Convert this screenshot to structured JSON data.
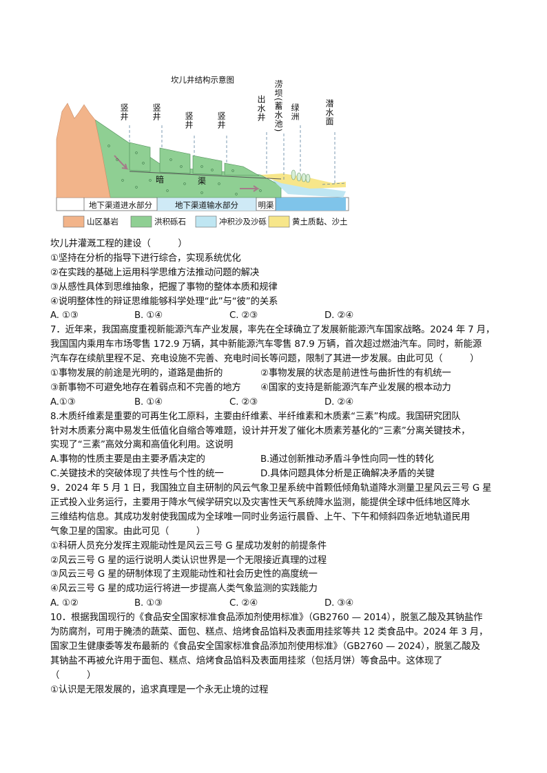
{
  "figure": {
    "title": "坎儿井结构示意图",
    "labels": {
      "shaft1": "竖井",
      "shaft2": "竖井",
      "shaft3": "竖井",
      "shaft4": "竖井",
      "outlet_well": "出水井",
      "reservoir": "涝坝(蓄水池)",
      "oasis": "绿洲",
      "water_table": "潜水面",
      "dark_channel_1": "暗",
      "dark_channel_2": "渠"
    },
    "sections": {
      "intake": "地下渠道进水部分",
      "transport": "地下渠道输水部分",
      "open_channel": "明渠"
    },
    "legend": [
      {
        "label": "山区基岩",
        "color": "#f2b48a"
      },
      {
        "label": "洪积砾石",
        "color": "#8fcf93"
      },
      {
        "label": "冲积沙及沙砾",
        "color": "#bfe6f2"
      },
      {
        "label": "黄土质黏、沙土",
        "color": "#f7e68a"
      }
    ]
  },
  "lines": [
    {
      "text": "坎儿井灌溉工程的建设（　　　）"
    },
    {
      "text": "①坚持在分析的指导下进行综合，实现系统优化"
    },
    {
      "text": "②在实践的基础上运用科学思维方法推动问题的解决"
    },
    {
      "text": "③从感性具体到思维抽象，把握了事物的整体本质和规律"
    },
    {
      "text": "④说明整体性的辩证思维能够科学处理“此”与“彼”的关系"
    },
    {
      "opts4": [
        "A. ①③",
        "B. ①④",
        "C. ②③",
        "D. ②④"
      ]
    },
    {
      "text": "7．近年来，我国高度重视新能源汽车产业发展，率先在全球确立了发展新能源汽车国家战略。2024 年 7 月，"
    },
    {
      "text": "我国国内乘用车市场零售 172.9 万辆，其中新能源汽车零售 87.9 万辆，首次超过燃油汽车。同时，新能源"
    },
    {
      "text": "汽车存在续航里程不足、充电设施不完善、充电时间长等问题，限制了其进一步发展。由此可见（　　　）"
    },
    {
      "opts2": [
        "①事物发展的前途是光明的，道路是曲折的",
        "②事物发展的状态是前进性与曲折性的有机统一"
      ]
    },
    {
      "opts2": [
        "③新事物不可避免地存在着弱点和不完善的地方",
        "④国家的支持是新能源汽车产业发展的根本动力"
      ]
    },
    {
      "opts4": [
        "A.①③",
        "B. ①④",
        "C. ②③",
        "D. ②④"
      ]
    },
    {
      "text": "8.木质纤维素是重要的可再生化工原料，主要由纤维素、半纤维素和木质素“三素”构成。我国研究团队"
    },
    {
      "text": "针对木质素分离中易发生低值化自缩合等难题，设计并开发了催化木质素芳基化的“三素”分离关键技术，"
    },
    {
      "text": "实现了“三素”高效分离和高值化利用。这说明"
    },
    {
      "opts2": [
        "A.事物的性质主要是由主要矛盾决定的",
        "B.通过创新推动矛盾斗争性向同一性的转化"
      ]
    },
    {
      "opts2": [
        "C.关键技术的突破体现了共性与个性的统一",
        "D.具体问题具体分析是正确解决矛盾的关键"
      ]
    },
    {
      "text": "9．2024 年 5 月 1 日，我国独立自主研制的风云气象卫星系统中首颗低倾角轨道降水测量卫星风云三号 G 星"
    },
    {
      "text": "正式投入业务运行，主要用于降水气候学研究以及灾害性天气系统降水监测，能提供全球中低纬地区降水"
    },
    {
      "text": "三维结构信息。其成功发射使我国成为全球唯一同时业务运行晨昏、上午、下午和倾斜四条近地轨道民用"
    },
    {
      "text": "气象卫星的国家。由此可见（　　　）"
    },
    {
      "text": "①科研人员充分发挥主观能动性是风云三号 G 星成功发射的前提条件"
    },
    {
      "text": "②风云三号 G 星的运行说明人类认识世界是一个无限接近真理的过程"
    },
    {
      "text": "③风云三号 G 星的研制体现了主观能动性和社会历史性的高度统一"
    },
    {
      "text": "④风云三号 G 星的成功运行将进一步提高人类气象监测的实践能力"
    },
    {
      "opts4": [
        "A. ①②",
        "B. ①③",
        "C. ②④",
        "D. ③④"
      ]
    },
    {
      "text": "10．根据我国现行的《食品安全国家标准食品添加剂使用标准》（GB2760 — 2014），脱氢乙酸及其钠盐作"
    },
    {
      "text": "为防腐剂，可用于腌渍的蔬菜、面包、糕点、焙烤食品馅料及表面用挂浆等共 12 类食品中。2024 年 3 月，"
    },
    {
      "text": "国家卫生健康委等发布最新的《食品安全国家标准食品添加剂使用标准》（GB2760 — 2024），脱氢乙酸及"
    },
    {
      "text": "其钠盐不再被允许用于面包、糕点、焙烤食品馅料及表面用挂浆（包括月饼）等食品中。这体现了"
    },
    {
      "text": "（　　　）"
    },
    {
      "text": "①认识是无限发展的，追求真理是一个永无止境的过程"
    }
  ]
}
